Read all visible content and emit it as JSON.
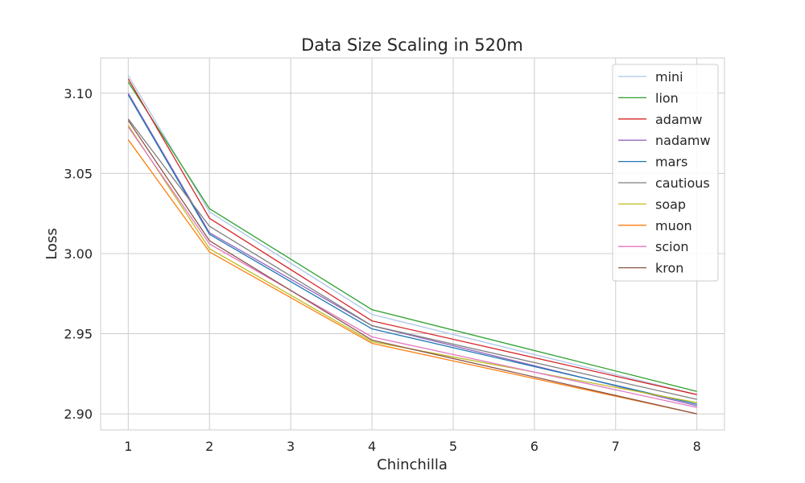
{
  "chart_data": {
    "type": "line",
    "title": "Data Size Scaling in 520m",
    "xlabel": "Chinchilla",
    "ylabel": "Loss",
    "x": [
      1,
      2,
      4,
      8
    ],
    "xlim": [
      0.66,
      8.34
    ],
    "ylim": [
      2.89,
      3.122
    ],
    "xticks": [
      1,
      2,
      3,
      4,
      5,
      6,
      7,
      8
    ],
    "yticks": [
      2.9,
      2.95,
      3.0,
      3.05,
      3.1
    ],
    "ytick_labels": [
      "2.90",
      "2.95",
      "3.00",
      "3.05",
      "3.10"
    ],
    "grid": true,
    "legend_position": "top-right",
    "series": [
      {
        "name": "mini",
        "color": "#aec7e8",
        "values": [
          3.111,
          3.026,
          2.962,
          2.912
        ]
      },
      {
        "name": "lion",
        "color": "#2ca02c",
        "values": [
          3.107,
          3.028,
          2.965,
          2.914
        ]
      },
      {
        "name": "adamw",
        "color": "#d62728",
        "values": [
          3.109,
          3.022,
          2.958,
          2.912
        ]
      },
      {
        "name": "nadamw",
        "color": "#9467bd",
        "values": [
          3.1,
          3.013,
          2.955,
          2.905
        ]
      },
      {
        "name": "mars",
        "color": "#1f77b4",
        "values": [
          3.099,
          3.012,
          2.953,
          2.906
        ]
      },
      {
        "name": "cautious",
        "color": "#7f7f7f",
        "values": [
          3.084,
          3.017,
          2.955,
          2.909
        ]
      },
      {
        "name": "soap",
        "color": "#bcbd22",
        "values": [
          3.08,
          3.003,
          2.945,
          2.907
        ]
      },
      {
        "name": "muon",
        "color": "#ff7f0e",
        "values": [
          3.071,
          3.001,
          2.944,
          2.9
        ]
      },
      {
        "name": "scion",
        "color": "#e377c2",
        "values": [
          3.079,
          3.006,
          2.948,
          2.904
        ]
      },
      {
        "name": "kron",
        "color": "#8c564b",
        "values": [
          3.083,
          3.008,
          2.946,
          2.9
        ]
      }
    ]
  }
}
